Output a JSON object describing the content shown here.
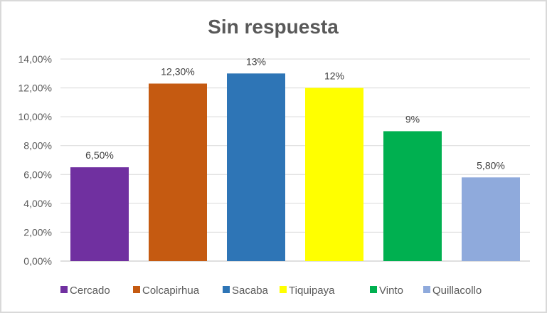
{
  "chart_data": {
    "type": "bar",
    "title": "Sin respuesta",
    "categories": [
      "Cercado",
      "Colcapirhua",
      "Sacaba",
      "Tiquipaya",
      "Vinto",
      "Quillacollo"
    ],
    "values": [
      6.5,
      12.3,
      13,
      12,
      9,
      5.8
    ],
    "data_labels": [
      "6,50%",
      "12,30%",
      "13%",
      "12%",
      "9%",
      "5,80%"
    ],
    "colors": [
      "#7030A0",
      "#C55A11",
      "#2E75B6",
      "#FFFF00",
      "#00B050",
      "#8FAADC"
    ],
    "ylim": [
      0,
      14
    ],
    "yticks": [
      0,
      2,
      4,
      6,
      8,
      10,
      12,
      14
    ],
    "ytick_labels": [
      "0,00%",
      "2,00%",
      "4,00%",
      "6,00%",
      "8,00%",
      "10,00%",
      "12,00%",
      "14,00%"
    ],
    "grid": true,
    "legend": "bottom",
    "xlabel": "",
    "ylabel": ""
  }
}
